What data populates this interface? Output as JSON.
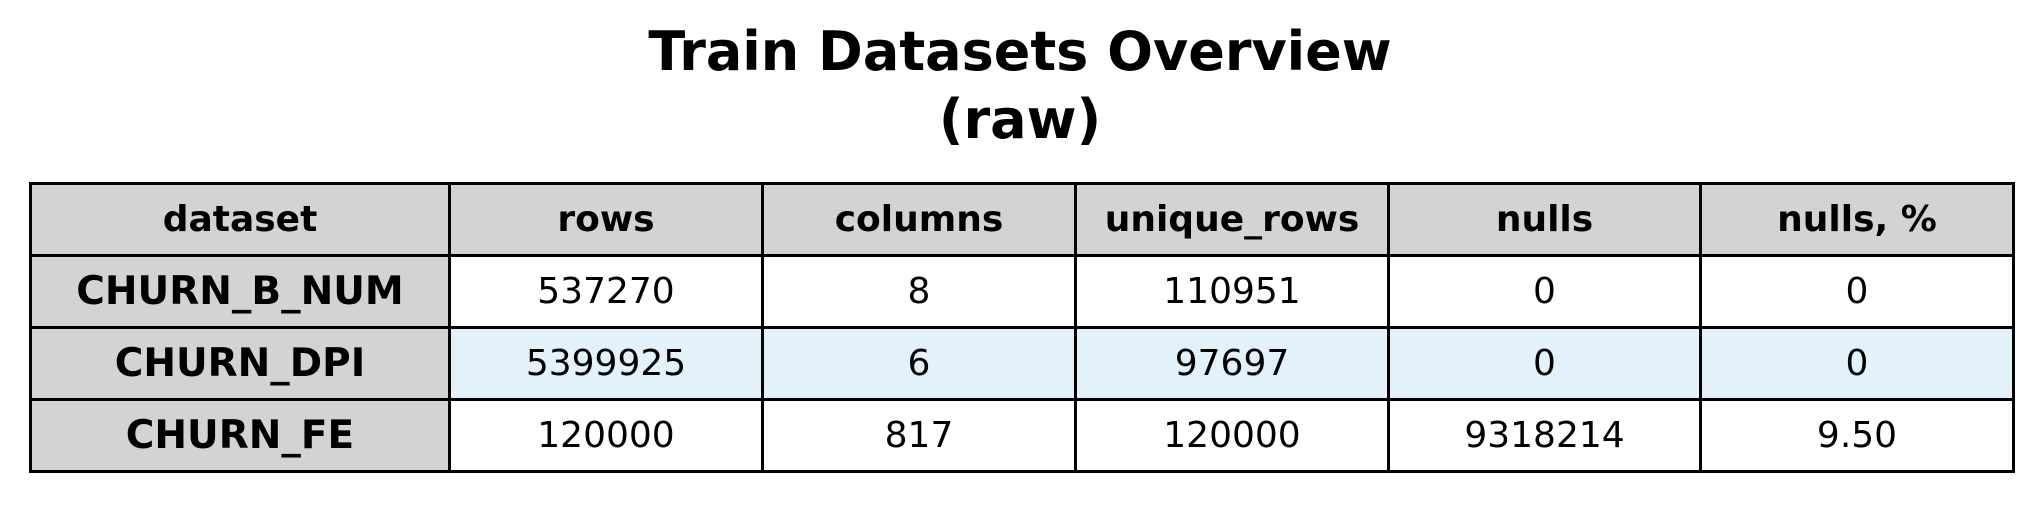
{
  "chart_data": {
    "type": "table",
    "title": [
      "Train Datasets Overview",
      "(raw)"
    ],
    "columns": [
      "dataset",
      "rows",
      "columns",
      "unique_rows",
      "nulls",
      "nulls, %"
    ],
    "rows": [
      [
        "CHURN_B_NUM",
        "537270",
        "8",
        "110951",
        "0",
        "0"
      ],
      [
        "CHURN_DPI",
        "5399925",
        "6",
        "97697",
        "0",
        "0"
      ],
      [
        "CHURN_FE",
        "120000",
        "817",
        "120000",
        "9318214",
        "9.50"
      ]
    ],
    "colors": {
      "header_bg": "#d3d3d3",
      "row_label_bg": "#d3d3d3",
      "cell_bg": "#ffffff",
      "alt_row_bg": "#e3f1fb",
      "border": "#000000"
    }
  }
}
